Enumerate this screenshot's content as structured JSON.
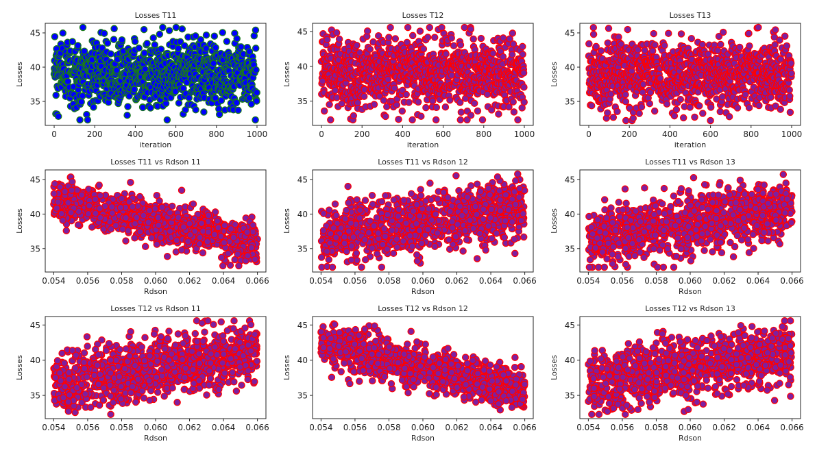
{
  "chart_data": [
    {
      "type": "scatter",
      "title": "Losses T11",
      "xlabel": "iteration",
      "ylabel": "Losses",
      "xlim": [
        -44,
        1044
      ],
      "ylim": [
        31.5,
        46.4
      ],
      "xticks": [
        0,
        200,
        400,
        600,
        800,
        1000
      ],
      "xtick_labels": [
        "0",
        "200",
        "400",
        "600",
        "800",
        "1000"
      ],
      "yticks": [
        35,
        40,
        45
      ],
      "ytick_labels": [
        "35",
        "40",
        "45"
      ],
      "n_points": 1000,
      "x_range": [
        0,
        1000
      ],
      "x_integer": true,
      "y_at_xmin": 39,
      "y_at_xmax": 39,
      "noise_sd": 2.5,
      "y_range": [
        32.3,
        45.8
      ],
      "face_color": "#0000ff",
      "edge_color": "#1a7a1a",
      "seed": 11
    },
    {
      "type": "scatter",
      "title": "Losses T12",
      "xlabel": "iteration",
      "ylabel": "Losses",
      "xlim": [
        -44,
        1044
      ],
      "ylim": [
        31.5,
        46.2
      ],
      "xticks": [
        0,
        200,
        400,
        600,
        800,
        1000
      ],
      "xtick_labels": [
        "0",
        "200",
        "400",
        "600",
        "800",
        "1000"
      ],
      "yticks": [
        35,
        40,
        45
      ],
      "ytick_labels": [
        "35",
        "40",
        "45"
      ],
      "n_points": 1000,
      "x_range": [
        0,
        1000
      ],
      "x_integer": true,
      "y_at_xmin": 39,
      "y_at_xmax": 39,
      "noise_sd": 2.6,
      "y_range": [
        32.3,
        45.6
      ],
      "face_color": "#7f1f9f",
      "edge_color": "#ff0000",
      "seed": 12
    },
    {
      "type": "scatter",
      "title": "Losses T13",
      "xlabel": "iteration",
      "ylabel": "Losses",
      "xlim": [
        -44,
        1044
      ],
      "ylim": [
        31.5,
        46.4
      ],
      "xticks": [
        0,
        200,
        400,
        600,
        800,
        1000
      ],
      "xtick_labels": [
        "0",
        "200",
        "400",
        "600",
        "800",
        "1000"
      ],
      "yticks": [
        35,
        40,
        45
      ],
      "ytick_labels": [
        "35",
        "40",
        "45"
      ],
      "n_points": 1000,
      "x_range": [
        0,
        1000
      ],
      "x_integer": true,
      "y_at_xmin": 39,
      "y_at_xmax": 39,
      "noise_sd": 2.5,
      "y_range": [
        32.2,
        45.8
      ],
      "face_color": "#7f1f9f",
      "edge_color": "#ff0000",
      "seed": 13
    },
    {
      "type": "scatter",
      "title": "Losses T11 vs Rdson 11",
      "xlabel": "Rdson",
      "ylabel": "Losses",
      "xlim": [
        0.0535,
        0.0665
      ],
      "ylim": [
        31.6,
        46.4
      ],
      "xticks": [
        0.054,
        0.056,
        0.058,
        0.06,
        0.062,
        0.064,
        0.066
      ],
      "xtick_labels": [
        "0.054",
        "0.056",
        "0.058",
        "0.060",
        "0.062",
        "0.064",
        "0.066"
      ],
      "yticks": [
        35,
        40,
        45
      ],
      "ytick_labels": [
        "35",
        "40",
        "45"
      ],
      "n_points": 1000,
      "x_range": [
        0.054,
        0.066
      ],
      "x_integer": false,
      "y_at_xmin": 42.3,
      "y_at_xmax": 35.6,
      "noise_sd": 1.5,
      "y_range": [
        32.3,
        45.8
      ],
      "face_color": "#7f1f9f",
      "edge_color": "#ff0000",
      "seed": 21
    },
    {
      "type": "scatter",
      "title": "Losses T11 vs Rdson 12",
      "xlabel": "Rdson",
      "ylabel": "Losses",
      "xlim": [
        0.0535,
        0.0665
      ],
      "ylim": [
        31.6,
        46.4
      ],
      "xticks": [
        0.054,
        0.056,
        0.058,
        0.06,
        0.062,
        0.064,
        0.066
      ],
      "xtick_labels": [
        "0.054",
        "0.056",
        "0.058",
        "0.060",
        "0.062",
        "0.064",
        "0.066"
      ],
      "yticks": [
        35,
        40,
        45
      ],
      "ytick_labels": [
        "35",
        "40",
        "45"
      ],
      "n_points": 1000,
      "x_range": [
        0.054,
        0.066
      ],
      "x_integer": false,
      "y_at_xmin": 36.5,
      "y_at_xmax": 41,
      "noise_sd": 2.1,
      "y_range": [
        32.3,
        45.8
      ],
      "face_color": "#7f1f9f",
      "edge_color": "#ff0000",
      "seed": 22
    },
    {
      "type": "scatter",
      "title": "Losses T11 vs Rdson 13",
      "xlabel": "Rdson",
      "ylabel": "Losses",
      "xlim": [
        0.0535,
        0.0665
      ],
      "ylim": [
        31.6,
        46.4
      ],
      "xticks": [
        0.054,
        0.056,
        0.058,
        0.06,
        0.062,
        0.064,
        0.066
      ],
      "xtick_labels": [
        "0.054",
        "0.056",
        "0.058",
        "0.060",
        "0.062",
        "0.064",
        "0.066"
      ],
      "yticks": [
        35,
        40,
        45
      ],
      "ytick_labels": [
        "35",
        "40",
        "45"
      ],
      "n_points": 1000,
      "x_range": [
        0.054,
        0.066
      ],
      "x_integer": false,
      "y_at_xmin": 36.5,
      "y_at_xmax": 41,
      "noise_sd": 2.1,
      "y_range": [
        32.3,
        45.8
      ],
      "face_color": "#7f1f9f",
      "edge_color": "#ff0000",
      "seed": 23
    },
    {
      "type": "scatter",
      "title": "Losses T12 vs Rdson 11",
      "xlabel": "Rdson",
      "ylabel": "Losses",
      "xlim": [
        0.0535,
        0.0665
      ],
      "ylim": [
        31.7,
        46.2
      ],
      "xticks": [
        0.054,
        0.056,
        0.058,
        0.06,
        0.062,
        0.064,
        0.066
      ],
      "xtick_labels": [
        "0.054",
        "0.056",
        "0.058",
        "0.060",
        "0.062",
        "0.064",
        "0.066"
      ],
      "yticks": [
        35,
        40,
        45
      ],
      "ytick_labels": [
        "35",
        "40",
        "45"
      ],
      "n_points": 1000,
      "x_range": [
        0.054,
        0.066
      ],
      "x_integer": false,
      "y_at_xmin": 36.5,
      "y_at_xmax": 41.2,
      "noise_sd": 2.1,
      "y_range": [
        32.3,
        45.6
      ],
      "face_color": "#7f1f9f",
      "edge_color": "#ff0000",
      "seed": 31
    },
    {
      "type": "scatter",
      "title": "Losses T12 vs Rdson 12",
      "xlabel": "Rdson",
      "ylabel": "Losses",
      "xlim": [
        0.0535,
        0.0665
      ],
      "ylim": [
        31.7,
        46.2
      ],
      "xticks": [
        0.054,
        0.056,
        0.058,
        0.06,
        0.062,
        0.064,
        0.066
      ],
      "xtick_labels": [
        "0.054",
        "0.056",
        "0.058",
        "0.060",
        "0.062",
        "0.064",
        "0.066"
      ],
      "yticks": [
        35,
        40,
        45
      ],
      "ytick_labels": [
        "35",
        "40",
        "45"
      ],
      "n_points": 1000,
      "x_range": [
        0.054,
        0.066
      ],
      "x_integer": false,
      "y_at_xmin": 42.3,
      "y_at_xmax": 35.6,
      "noise_sd": 1.5,
      "y_range": [
        32.3,
        45.6
      ],
      "face_color": "#7f1f9f",
      "edge_color": "#ff0000",
      "seed": 32
    },
    {
      "type": "scatter",
      "title": "Losses T12 vs Rdson 13",
      "xlabel": "Rdson",
      "ylabel": "Losses",
      "xlim": [
        0.0535,
        0.0665
      ],
      "ylim": [
        31.7,
        46.2
      ],
      "xticks": [
        0.054,
        0.056,
        0.058,
        0.06,
        0.062,
        0.064,
        0.066
      ],
      "xtick_labels": [
        "0.054",
        "0.056",
        "0.058",
        "0.060",
        "0.062",
        "0.064",
        "0.066"
      ],
      "yticks": [
        35,
        40,
        45
      ],
      "ytick_labels": [
        "35",
        "40",
        "45"
      ],
      "n_points": 1000,
      "x_range": [
        0.054,
        0.066
      ],
      "x_integer": false,
      "y_at_xmin": 36.5,
      "y_at_xmax": 41.2,
      "noise_sd": 2.1,
      "y_range": [
        32.3,
        45.6
      ],
      "face_color": "#7f1f9f",
      "edge_color": "#ff0000",
      "seed": 33
    }
  ]
}
